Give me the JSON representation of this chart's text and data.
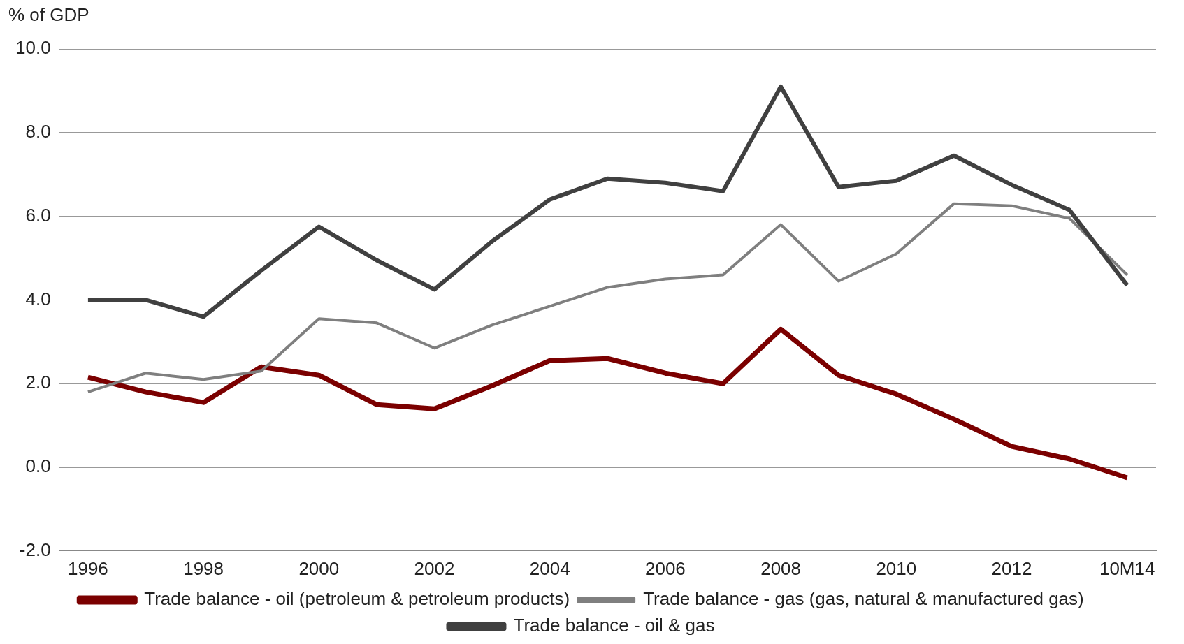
{
  "chart_data": {
    "type": "line",
    "ylabel": "% of GDP",
    "categories": [
      "1996",
      null,
      "1998",
      null,
      "2000",
      null,
      "2002",
      null,
      "2004",
      null,
      "2006",
      null,
      "2008",
      null,
      "2010",
      null,
      "2012",
      null,
      "10M14"
    ],
    "series": [
      {
        "name": "Trade balance - oil (petroleum & petroleum products)",
        "color": "#7b0000",
        "values": [
          2.15,
          1.8,
          1.55,
          2.4,
          2.2,
          1.5,
          1.4,
          1.95,
          2.55,
          2.6,
          2.25,
          2.0,
          3.3,
          2.2,
          1.75,
          1.15,
          0.5,
          0.2,
          -0.25
        ]
      },
      {
        "name": "Trade balance - gas (gas, natural & manufactured gas)",
        "color": "#7f7f7f",
        "values": [
          1.8,
          2.25,
          2.1,
          2.3,
          3.55,
          3.45,
          2.85,
          3.4,
          3.85,
          4.3,
          4.5,
          4.6,
          5.8,
          4.45,
          5.1,
          6.3,
          6.25,
          5.95,
          4.6
        ]
      },
      {
        "name": "Trade balance - oil & gas",
        "color": "#404040",
        "values": [
          4.0,
          4.0,
          3.6,
          4.7,
          5.75,
          4.95,
          4.25,
          5.4,
          6.4,
          6.9,
          6.8,
          6.6,
          9.1,
          6.7,
          6.85,
          7.45,
          6.75,
          6.15,
          4.35
        ]
      }
    ],
    "ylim": [
      -2,
      10
    ],
    "yticks": [
      {
        "value": -2,
        "label": "-2.0"
      },
      {
        "value": 0,
        "label": "0.0"
      },
      {
        "value": 2,
        "label": "2.0"
      },
      {
        "value": 4,
        "label": "4.0"
      },
      {
        "value": 6,
        "label": "6.0"
      },
      {
        "value": 8,
        "label": "8.0"
      },
      {
        "value": 10,
        "label": "10.0"
      }
    ],
    "grid": "y",
    "legend": "bottom",
    "marker": "none",
    "line_style": "solid"
  }
}
